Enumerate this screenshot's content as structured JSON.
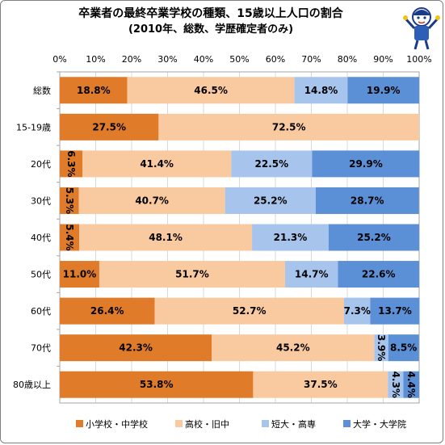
{
  "title": {
    "line1": "卒業者の最終卒業学校の種類、15歳以上人口の割合",
    "line2": "(2010年、総数、学歴確定者のみ)"
  },
  "mascot_icon": "cheering-character-icon",
  "chart_data": {
    "type": "bar",
    "orientation": "horizontal",
    "stacked": "percent",
    "xlim": [
      0,
      100
    ],
    "x_ticks": [
      "0%",
      "10%",
      "20%",
      "30%",
      "40%",
      "50%",
      "60%",
      "70%",
      "80%",
      "90%",
      "100%"
    ],
    "grid": true,
    "legend_position": "bottom",
    "categories": [
      "総数",
      "15-19歳",
      "20代",
      "30代",
      "40代",
      "50代",
      "60代",
      "70代",
      "80歳以上"
    ],
    "series": [
      {
        "name": "小学校・中学校",
        "color": "#e07b2a",
        "values": [
          18.8,
          27.5,
          6.3,
          5.3,
          5.4,
          11.0,
          26.4,
          42.3,
          53.8
        ],
        "labels": [
          "18.8%",
          "27.5%",
          "6.3%",
          "5.3%",
          "5.4%",
          "11.0%",
          "26.4%",
          "42.3%",
          "53.8%"
        ]
      },
      {
        "name": "高校・旧中",
        "color": "#f9c9a0",
        "values": [
          46.5,
          72.5,
          41.4,
          40.7,
          48.1,
          51.7,
          52.7,
          45.2,
          37.5
        ],
        "labels": [
          "46.5%",
          "72.5%",
          "41.4%",
          "40.7%",
          "48.1%",
          "51.7%",
          "52.7%",
          "45.2%",
          "37.5%"
        ]
      },
      {
        "name": "短大・高専",
        "color": "#a7c5ec",
        "values": [
          14.8,
          0,
          22.5,
          25.2,
          21.3,
          14.7,
          7.3,
          3.9,
          4.3
        ],
        "labels": [
          "14.8%",
          "",
          "22.5%",
          "25.2%",
          "21.3%",
          "14.7%",
          "7.3%",
          "3.9%",
          "4.3%"
        ]
      },
      {
        "name": "大学・大学院",
        "color": "#5b8fd6",
        "values": [
          19.9,
          0,
          29.9,
          28.7,
          25.2,
          22.6,
          13.7,
          8.5,
          4.4
        ],
        "labels": [
          "19.9%",
          "",
          "29.9%",
          "28.7%",
          "25.2%",
          "22.6%",
          "13.7%",
          "8.5%",
          "4.4%"
        ]
      }
    ]
  }
}
